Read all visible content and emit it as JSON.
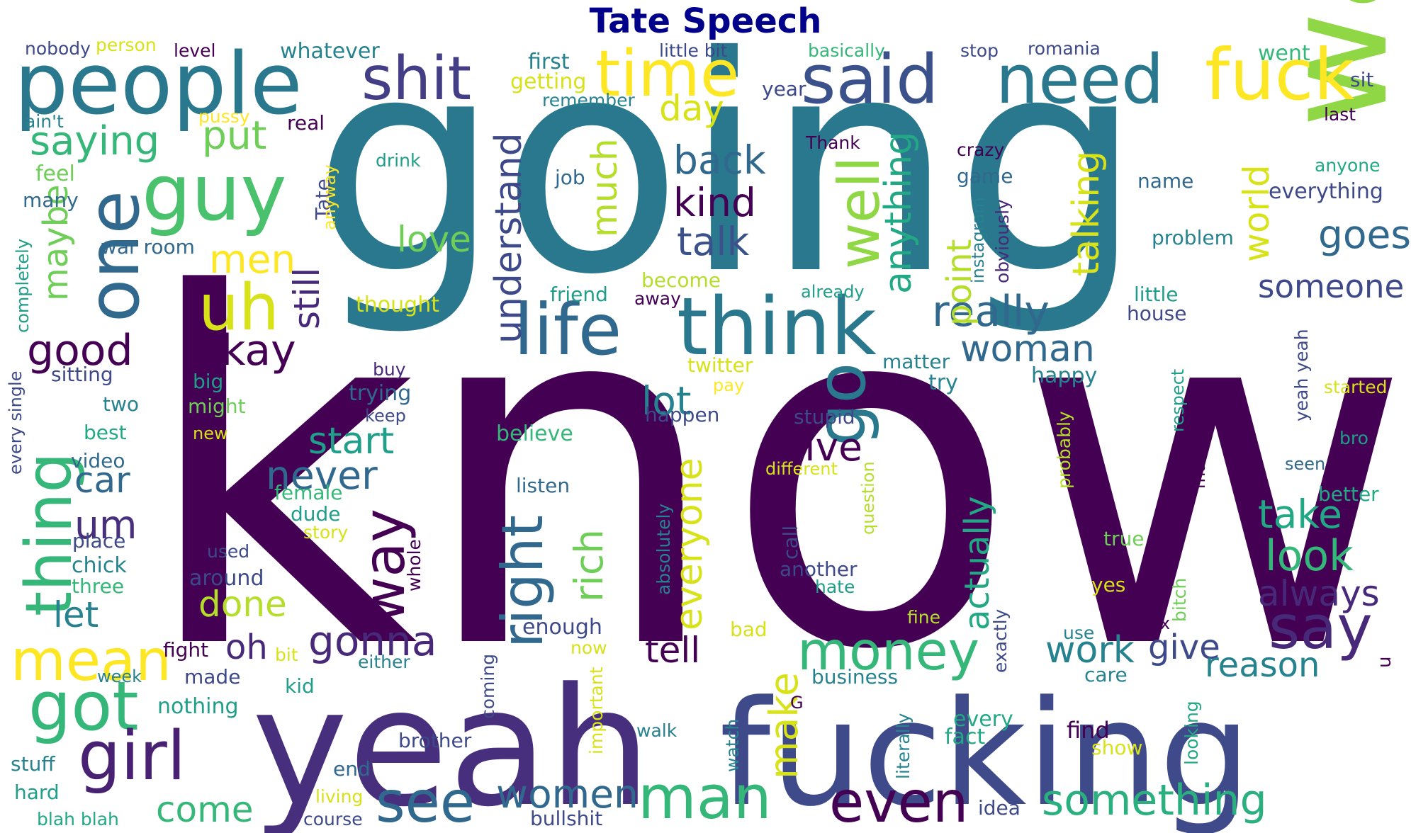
{
  "title": "Tate Speech",
  "palette": [
    "#440154",
    "#482878",
    "#3e4989",
    "#31688e",
    "#26828e",
    "#1f9e89",
    "#35b779",
    "#6ece58",
    "#b5de2b",
    "#fde725"
  ],
  "words": [
    {
      "text": "know",
      "color": "#440154"
    },
    {
      "text": "going",
      "color": "#2a788e"
    },
    {
      "text": "yeah",
      "color": "#472f7d"
    },
    {
      "text": "fucking",
      "color": "#3e4a89"
    },
    {
      "text": "want",
      "color": "#8fd744"
    },
    {
      "text": "think",
      "color": "#2a788e"
    },
    {
      "text": "people",
      "color": "#2a788e"
    },
    {
      "text": "need",
      "color": "#2a788e"
    },
    {
      "text": "said",
      "color": "#3b518b"
    },
    {
      "text": "fuck",
      "color": "#fde725"
    },
    {
      "text": "time",
      "color": "#fde725"
    },
    {
      "text": "shit",
      "color": "#433e85"
    },
    {
      "text": "guy",
      "color": "#4ac16d"
    },
    {
      "text": "one",
      "color": "#31688e"
    },
    {
      "text": "life",
      "color": "#31688e"
    },
    {
      "text": "uh",
      "color": "#d8e219"
    },
    {
      "text": "thing",
      "color": "#35b779"
    },
    {
      "text": "mean",
      "color": "#fde725"
    },
    {
      "text": "got",
      "color": "#35b779"
    },
    {
      "text": "girl",
      "color": "#482173"
    },
    {
      "text": "man",
      "color": "#35b779"
    },
    {
      "text": "see",
      "color": "#31688e"
    },
    {
      "text": "even",
      "color": "#440154"
    },
    {
      "text": "something",
      "color": "#2ab07f"
    },
    {
      "text": "money",
      "color": "#35b779"
    },
    {
      "text": "say",
      "color": "#482878"
    },
    {
      "text": "go",
      "color": "#2a788e"
    },
    {
      "text": "right",
      "color": "#31688e"
    },
    {
      "text": "well",
      "color": "#8fd744"
    },
    {
      "text": "way",
      "color": "#440154"
    },
    {
      "text": "really",
      "color": "#31688e"
    },
    {
      "text": "woman",
      "color": "#31688e"
    },
    {
      "text": "okay",
      "color": "#440154"
    },
    {
      "text": "good",
      "color": "#440154"
    },
    {
      "text": "saying",
      "color": "#35b779"
    },
    {
      "text": "put",
      "color": "#6ece58"
    },
    {
      "text": "kind",
      "color": "#440154"
    },
    {
      "text": "talk",
      "color": "#3b518b"
    },
    {
      "text": "back",
      "color": "#31688e"
    },
    {
      "text": "day",
      "color": "#d8e219"
    },
    {
      "text": "anything",
      "color": "#22a884"
    },
    {
      "text": "talking",
      "color": "#d8e219"
    },
    {
      "text": "world",
      "color": "#d8e219"
    },
    {
      "text": "goes",
      "color": "#31688e"
    },
    {
      "text": "someone",
      "color": "#3e4989"
    },
    {
      "text": "understand",
      "color": "#3e4989"
    },
    {
      "text": "much",
      "color": "#b5de2b"
    },
    {
      "text": "love",
      "color": "#6ece58"
    },
    {
      "text": "men",
      "color": "#fde725"
    },
    {
      "text": "still",
      "color": "#482878"
    },
    {
      "text": "maybe",
      "color": "#6ece58"
    },
    {
      "text": "point",
      "color": "#b5de2b"
    },
    {
      "text": "lot",
      "color": "#26828e"
    },
    {
      "text": "start",
      "color": "#1f9e89"
    },
    {
      "text": "live",
      "color": "#440154"
    },
    {
      "text": "never",
      "color": "#31688e"
    },
    {
      "text": "car",
      "color": "#31688e"
    },
    {
      "text": "um",
      "color": "#472f7d"
    },
    {
      "text": "let",
      "color": "#26828e"
    },
    {
      "text": "done",
      "color": "#b5de2b"
    },
    {
      "text": "gonna",
      "color": "#482878"
    },
    {
      "text": "oh",
      "color": "#482878"
    },
    {
      "text": "everyone",
      "color": "#d8e219"
    },
    {
      "text": "rich",
      "color": "#6ece58"
    },
    {
      "text": "actually",
      "color": "#22a884"
    },
    {
      "text": "take",
      "color": "#22a884"
    },
    {
      "text": "look",
      "color": "#35b779"
    },
    {
      "text": "always",
      "color": "#482878"
    },
    {
      "text": "work",
      "color": "#26828e"
    },
    {
      "text": "give",
      "color": "#3e4989"
    },
    {
      "text": "reason",
      "color": "#26828e"
    },
    {
      "text": "tell",
      "color": "#440154"
    },
    {
      "text": "women",
      "color": "#31688e"
    },
    {
      "text": "come",
      "color": "#35b779"
    },
    {
      "text": "make",
      "color": "#d8e219"
    },
    {
      "text": "nobody",
      "color": "#3e4989"
    },
    {
      "text": "person",
      "color": "#d8e219"
    },
    {
      "text": "level",
      "color": "#440154"
    },
    {
      "text": "whatever",
      "color": "#26828e"
    },
    {
      "text": "first",
      "color": "#26828e"
    },
    {
      "text": "getting",
      "color": "#d8e219"
    },
    {
      "text": "remember",
      "color": "#26828e"
    },
    {
      "text": "little bit",
      "color": "#3e4989"
    },
    {
      "text": "basically",
      "color": "#35b779"
    },
    {
      "text": "stop",
      "color": "#3e4989"
    },
    {
      "text": "romania",
      "color": "#3e4989"
    },
    {
      "text": "went",
      "color": "#35b779"
    },
    {
      "text": "sit",
      "color": "#3e4989"
    },
    {
      "text": "last",
      "color": "#440154"
    },
    {
      "text": "year",
      "color": "#3e4989"
    },
    {
      "text": "ain't",
      "color": "#26828e"
    },
    {
      "text": "pussy",
      "color": "#fde725"
    },
    {
      "text": "real",
      "color": "#440154"
    },
    {
      "text": "Thank",
      "color": "#440154"
    },
    {
      "text": "crazy",
      "color": "#440154"
    },
    {
      "text": "anyone",
      "color": "#22a884"
    },
    {
      "text": "everything",
      "color": "#3e4989"
    },
    {
      "text": "feel",
      "color": "#6ece58"
    },
    {
      "text": "drink",
      "color": "#1f9e89"
    },
    {
      "text": "job",
      "color": "#31688e"
    },
    {
      "text": "game",
      "color": "#31688e"
    },
    {
      "text": "name",
      "color": "#31688e"
    },
    {
      "text": "many",
      "color": "#31688e"
    },
    {
      "text": "Tate",
      "color": "#3e4989"
    },
    {
      "text": "anyway",
      "color": "#fde725"
    },
    {
      "text": "obviously",
      "color": "#482878"
    },
    {
      "text": "instagram",
      "color": "#26828e"
    },
    {
      "text": "problem",
      "color": "#26828e"
    },
    {
      "text": "war room",
      "color": "#31688e"
    },
    {
      "text": "completely",
      "color": "#1f9e89"
    },
    {
      "text": "become",
      "color": "#b5de2b"
    },
    {
      "text": "friend",
      "color": "#1f9e89"
    },
    {
      "text": "away",
      "color": "#440154"
    },
    {
      "text": "already",
      "color": "#1f9e89"
    },
    {
      "text": "little",
      "color": "#1f9e89"
    },
    {
      "text": "house",
      "color": "#3e4989"
    },
    {
      "text": "thought",
      "color": "#d8e219"
    },
    {
      "text": "sitting",
      "color": "#3e4989"
    },
    {
      "text": "buy",
      "color": "#482878"
    },
    {
      "text": "twitter",
      "color": "#d8e219"
    },
    {
      "text": "matter",
      "color": "#26828e"
    },
    {
      "text": "happy",
      "color": "#26828e"
    },
    {
      "text": "try",
      "color": "#26828e"
    },
    {
      "text": "yeah yeah",
      "color": "#3e4989"
    },
    {
      "text": "big",
      "color": "#1f9e89"
    },
    {
      "text": "might",
      "color": "#6ece58"
    },
    {
      "text": "trying",
      "color": "#31688e"
    },
    {
      "text": "pay",
      "color": "#fde725"
    },
    {
      "text": "started",
      "color": "#d8e219"
    },
    {
      "text": "every single",
      "color": "#3e4989"
    },
    {
      "text": "two",
      "color": "#26828e"
    },
    {
      "text": "keep",
      "color": "#3e4989"
    },
    {
      "text": "happen",
      "color": "#3e4989"
    },
    {
      "text": "stupid",
      "color": "#3e4989"
    },
    {
      "text": "best",
      "color": "#22a884"
    },
    {
      "text": "new",
      "color": "#d8e219"
    },
    {
      "text": "believe",
      "color": "#35b779"
    },
    {
      "text": "probably",
      "color": "#b5de2b"
    },
    {
      "text": "respect",
      "color": "#1f9e89"
    },
    {
      "text": "bro",
      "color": "#1f9e89"
    },
    {
      "text": "video",
      "color": "#31688e"
    },
    {
      "text": "different",
      "color": "#d8e219"
    },
    {
      "text": "make money",
      "color": "#440154"
    },
    {
      "text": "seen",
      "color": "#31688e"
    },
    {
      "text": "listen",
      "color": "#31688e"
    },
    {
      "text": "question",
      "color": "#b5de2b"
    },
    {
      "text": "absolutely",
      "color": "#26828e"
    },
    {
      "text": "female",
      "color": "#35b779"
    },
    {
      "text": "better",
      "color": "#22a884"
    },
    {
      "text": "dude",
      "color": "#1f9e89"
    },
    {
      "text": "story",
      "color": "#d8e219"
    },
    {
      "text": "call",
      "color": "#3e4989"
    },
    {
      "text": "place",
      "color": "#3e4989"
    },
    {
      "text": "used",
      "color": "#3e4989"
    },
    {
      "text": "whole",
      "color": "#440154"
    },
    {
      "text": "true",
      "color": "#6ece58"
    },
    {
      "text": "chick",
      "color": "#26828e"
    },
    {
      "text": "around",
      "color": "#3e4989"
    },
    {
      "text": "another",
      "color": "#3e4989"
    },
    {
      "text": "three",
      "color": "#35b779"
    },
    {
      "text": "hate",
      "color": "#1f9e89"
    },
    {
      "text": "yes",
      "color": "#d8e219"
    },
    {
      "text": "bitch",
      "color": "#6ece58"
    },
    {
      "text": "enough",
      "color": "#3e4989"
    },
    {
      "text": "fine",
      "color": "#b5de2b"
    },
    {
      "text": "exactly",
      "color": "#3e4989"
    },
    {
      "text": "bad",
      "color": "#d8e219"
    },
    {
      "text": "sex",
      "color": "#440154"
    },
    {
      "text": "fight",
      "color": "#440154"
    },
    {
      "text": "use",
      "color": "#26828e"
    },
    {
      "text": "now",
      "color": "#d8e219"
    },
    {
      "text": "u",
      "color": "#440154"
    },
    {
      "text": "bit",
      "color": "#d8e219"
    },
    {
      "text": "either",
      "color": "#26828e"
    },
    {
      "text": "week",
      "color": "#26828e"
    },
    {
      "text": "made",
      "color": "#3e4989"
    },
    {
      "text": "business",
      "color": "#26828e"
    },
    {
      "text": "care",
      "color": "#26828e"
    },
    {
      "text": "kid",
      "color": "#1f9e89"
    },
    {
      "text": "coming",
      "color": "#3e4989"
    },
    {
      "text": "nothing",
      "color": "#1f9e89"
    },
    {
      "text": "important",
      "color": "#d8e219"
    },
    {
      "text": "G",
      "color": "#440154"
    },
    {
      "text": "walk",
      "color": "#26828e"
    },
    {
      "text": "every",
      "color": "#22a884"
    },
    {
      "text": "looking",
      "color": "#22a884"
    },
    {
      "text": "find",
      "color": "#440154"
    },
    {
      "text": "brother",
      "color": "#3e4989"
    },
    {
      "text": "fact",
      "color": "#22a884"
    },
    {
      "text": "show",
      "color": "#d8e219"
    },
    {
      "text": "watch",
      "color": "#26828e"
    },
    {
      "text": "literally",
      "color": "#26828e"
    },
    {
      "text": "stuff",
      "color": "#26828e"
    },
    {
      "text": "end",
      "color": "#31688e"
    },
    {
      "text": "hard",
      "color": "#1f9e89"
    },
    {
      "text": "living",
      "color": "#d8e219"
    },
    {
      "text": "idea",
      "color": "#3e4989"
    },
    {
      "text": "blah blah",
      "color": "#22a884"
    },
    {
      "text": "course",
      "color": "#3e4989"
    },
    {
      "text": "bullshit",
      "color": "#3e4989"
    }
  ]
}
